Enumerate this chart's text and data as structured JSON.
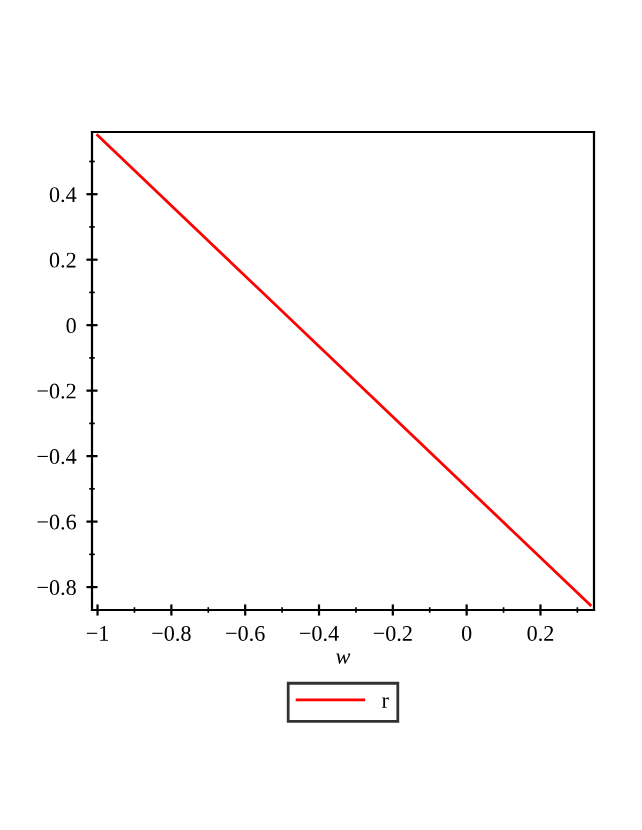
{
  "chart_data": {
    "type": "line",
    "xlabel": "w",
    "x": [
      -1,
      0.335
    ],
    "series": [
      {
        "name": "r",
        "color": "#ff0000",
        "values": [
          0.58,
          -0.855
        ]
      }
    ],
    "xlim": [
      -1.015,
      0.345
    ],
    "ylim": [
      -0.87,
      0.59
    ],
    "xticks": [
      {
        "value": -1,
        "label": "−1"
      },
      {
        "value": -0.8,
        "label": "−0.8"
      },
      {
        "value": -0.6,
        "label": "−0.6"
      },
      {
        "value": -0.4,
        "label": "−0.4"
      },
      {
        "value": -0.2,
        "label": "−0.2"
      },
      0,
      0.2
    ],
    "yticks": [
      {
        "value": -0.8,
        "label": "−0.8"
      },
      {
        "value": -0.6,
        "label": "−0.6"
      },
      {
        "value": -0.4,
        "label": "−0.4"
      },
      {
        "value": -0.2,
        "label": "−0.2"
      },
      0,
      0.2,
      0.4
    ],
    "grid": false,
    "legend": "bottom",
    "marker": "none",
    "line_style": "solid"
  }
}
